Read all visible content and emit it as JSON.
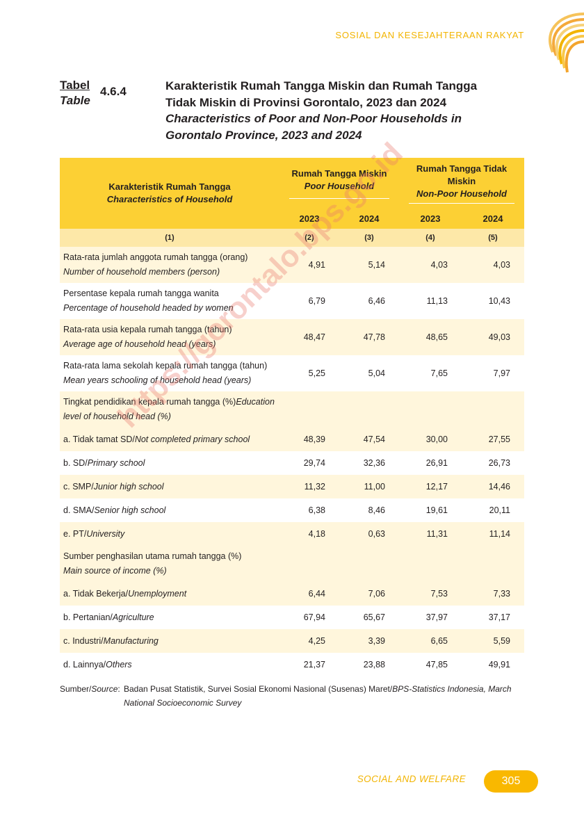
{
  "header": {
    "running_title": "SOSIAL DAN KESEJAHTERAAN RAKYAT"
  },
  "table_label": {
    "id": "Tabel",
    "en": "Table",
    "number": "4.6.4"
  },
  "title": {
    "id_line1": "Karakteristik Rumah Tangga Miskin dan Rumah Tangga",
    "id_line2": "Tidak Miskin di Provinsi Gorontalo, 2023 dan 2024",
    "en_line1": "Characteristics of Poor and Non-Poor Households in",
    "en_line2": "Gorontalo Province, 2023 and 2024"
  },
  "columns": {
    "char_id": "Karakteristik Rumah Tangga",
    "char_en": "Characteristics of Household",
    "poor_id": "Rumah Tangga Miskin",
    "poor_en": "Poor Household",
    "nonpoor_id_1": "Rumah Tangga Tidak",
    "nonpoor_id_2": "Miskin",
    "nonpoor_en": "Non-Poor Household",
    "y1": "2023",
    "y2": "2024",
    "y3": "2023",
    "y4": "2024",
    "n1": "(1)",
    "n2": "(2)",
    "n3": "(3)",
    "n4": "(4)",
    "n5": "(5)"
  },
  "rows": [
    {
      "id": "Rata-rata jumlah anggota rumah tangga (orang)",
      "en": "Number of household members (person)",
      "v": [
        "4,91",
        "5,14",
        "4,03",
        "4,03"
      ]
    },
    {
      "id": "Persentase kepala rumah tangga wanita",
      "en": "Percentage of household headed by women",
      "v": [
        "6,79",
        "6,46",
        "11,13",
        "10,43"
      ]
    },
    {
      "id": "Rata-rata usia kepala rumah tangga (tahun)",
      "en": "Average age of household head (years)",
      "v": [
        "48,47",
        "47,78",
        "48,65",
        "49,03"
      ]
    },
    {
      "id": "Rata-rata lama sekolah kepala rumah tangga (tahun)",
      "en": "Mean years schooling of household head (years)",
      "v": [
        "5,25",
        "5,04",
        "7,65",
        "7,97"
      ]
    }
  ],
  "education": {
    "heading_id": "Tingkat pendidikan kepala rumah tangga (%)",
    "heading_en_1": "Education",
    "heading_en_2": "level of household head (%)",
    "items": [
      {
        "id": "a. Tidak tamat SD/",
        "en": "Not completed primary school",
        "v": [
          "48,39",
          "47,54",
          "30,00",
          "27,55"
        ]
      },
      {
        "id": "b. SD/",
        "en": "Primary school",
        "v": [
          "29,74",
          "32,36",
          "26,91",
          "26,73"
        ]
      },
      {
        "id": "c. SMP/",
        "en": "Junior high school",
        "v": [
          "11,32",
          "11,00",
          "12,17",
          "14,46"
        ]
      },
      {
        "id": "d. SMA/",
        "en": "Senior high school",
        "v": [
          "6,38",
          "8,46",
          "19,61",
          "20,11"
        ]
      },
      {
        "id": "e. PT/",
        "en": "University",
        "v": [
          "4,18",
          "0,63",
          "11,31",
          "11,14"
        ]
      }
    ]
  },
  "income": {
    "heading_id": "Sumber penghasilan utama rumah tangga (%)",
    "heading_en": "Main source of income (%)",
    "items": [
      {
        "id": "a. Tidak Bekerja/",
        "en": "Unemployment",
        "v": [
          "6,44",
          "7,06",
          "7,53",
          "7,33"
        ]
      },
      {
        "id": "b. Pertanian/",
        "en": "Agriculture",
        "v": [
          "67,94",
          "65,67",
          "37,97",
          "37,17"
        ]
      },
      {
        "id": "c. Industri/",
        "en": "Manufacturing",
        "v": [
          "4,25",
          "3,39",
          "6,65",
          "5,59"
        ]
      },
      {
        "id": "d. Lainnya/",
        "en": "Others",
        "v": [
          "21,37",
          "23,88",
          "47,85",
          "49,91"
        ]
      }
    ]
  },
  "source": {
    "key_id": "Sumber/",
    "key_en": "Source",
    "colon": ":",
    "text_id": "Badan Pusat Statistik, Survei Sosial Ekonomi Nasional (Susenas) Maret/",
    "text_en": "BPS-Statistics Indonesia, March National Socioeconomic Survey"
  },
  "footer": {
    "section": "SOCIAL AND WELFARE",
    "page": "305"
  },
  "watermark": "https://gorontalo.bps.go.id",
  "colors": {
    "accent": "#f9b800",
    "header_bg": "#fcd034",
    "number_row_bg": "#fde8a8",
    "stripe_bg": "#fff6dc"
  }
}
